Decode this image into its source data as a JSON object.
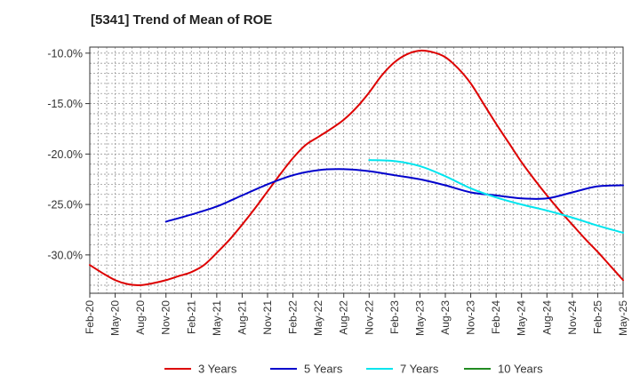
{
  "chart_data": {
    "type": "line",
    "title": "[5341]  Trend of Mean of ROE",
    "xlabel": "",
    "ylabel": "",
    "categories": [
      "Feb-20",
      "May-20",
      "Aug-20",
      "Nov-20",
      "Feb-21",
      "May-21",
      "Aug-21",
      "Nov-21",
      "Feb-22",
      "May-22",
      "Aug-22",
      "Nov-22",
      "Feb-23",
      "May-23",
      "Aug-23",
      "Nov-23",
      "Feb-24",
      "May-24",
      "Aug-24",
      "Nov-24",
      "Feb-25",
      "May-25"
    ],
    "y_ticks": [
      -10,
      -15,
      -20,
      -25,
      -30
    ],
    "y_tick_labels": [
      "-10.0%",
      "-15.0%",
      "-20.0%",
      "-25.0%",
      "-30.0%"
    ],
    "ylim": [
      -33.8,
      -9.4
    ],
    "grid": true,
    "legend_position": "bottom",
    "series": [
      {
        "name": "3 Years",
        "color": "#dd0000",
        "points": [
          [
            0,
            -31.0
          ],
          [
            0.5,
            -31.8
          ],
          [
            1,
            -32.5
          ],
          [
            1.5,
            -32.9
          ],
          [
            2,
            -33.0
          ],
          [
            2.5,
            -32.8
          ],
          [
            3,
            -32.5
          ],
          [
            3.5,
            -32.1
          ],
          [
            4,
            -31.7
          ],
          [
            4.5,
            -31.0
          ],
          [
            5,
            -29.8
          ],
          [
            5.5,
            -28.5
          ],
          [
            6,
            -27.0
          ],
          [
            6.5,
            -25.4
          ],
          [
            7,
            -23.7
          ],
          [
            7.5,
            -22.0
          ],
          [
            8,
            -20.4
          ],
          [
            8.5,
            -19.1
          ],
          [
            9,
            -18.3
          ],
          [
            9.5,
            -17.5
          ],
          [
            10,
            -16.6
          ],
          [
            10.5,
            -15.4
          ],
          [
            11,
            -13.9
          ],
          [
            11.5,
            -12.2
          ],
          [
            12,
            -10.9
          ],
          [
            12.5,
            -10.1
          ],
          [
            13,
            -9.75
          ],
          [
            13.5,
            -9.9
          ],
          [
            14,
            -10.4
          ],
          [
            14.5,
            -11.5
          ],
          [
            15,
            -13.0
          ],
          [
            15.5,
            -15.0
          ],
          [
            16,
            -17.0
          ],
          [
            16.5,
            -18.9
          ],
          [
            17,
            -20.8
          ],
          [
            17.5,
            -22.5
          ],
          [
            18,
            -24.1
          ],
          [
            18.5,
            -25.6
          ],
          [
            19,
            -27.0
          ],
          [
            19.5,
            -28.4
          ],
          [
            20,
            -29.7
          ],
          [
            20.5,
            -31.1
          ],
          [
            21,
            -32.5
          ]
        ]
      },
      {
        "name": "5 Years",
        "color": "#0000cc",
        "points": [
          [
            3,
            -26.7
          ],
          [
            4,
            -26.0
          ],
          [
            5,
            -25.2
          ],
          [
            6,
            -24.1
          ],
          [
            7,
            -23.0
          ],
          [
            8,
            -22.1
          ],
          [
            9,
            -21.6
          ],
          [
            10,
            -21.5
          ],
          [
            11,
            -21.7
          ],
          [
            12,
            -22.1
          ],
          [
            13,
            -22.5
          ],
          [
            14,
            -23.1
          ],
          [
            15,
            -23.8
          ],
          [
            16,
            -24.1
          ],
          [
            17,
            -24.4
          ],
          [
            18,
            -24.4
          ],
          [
            19,
            -23.8
          ],
          [
            20,
            -23.2
          ],
          [
            21,
            -23.1
          ]
        ]
      },
      {
        "name": "7 Years",
        "color": "#00e5ee",
        "points": [
          [
            11,
            -20.6
          ],
          [
            12,
            -20.7
          ],
          [
            13,
            -21.2
          ],
          [
            14,
            -22.2
          ],
          [
            15,
            -23.4
          ],
          [
            16,
            -24.3
          ],
          [
            17,
            -25.0
          ],
          [
            18,
            -25.6
          ],
          [
            19,
            -26.3
          ],
          [
            20,
            -27.1
          ],
          [
            21,
            -27.8
          ]
        ]
      },
      {
        "name": "10 Years",
        "color": "#228b22",
        "points": []
      }
    ]
  }
}
